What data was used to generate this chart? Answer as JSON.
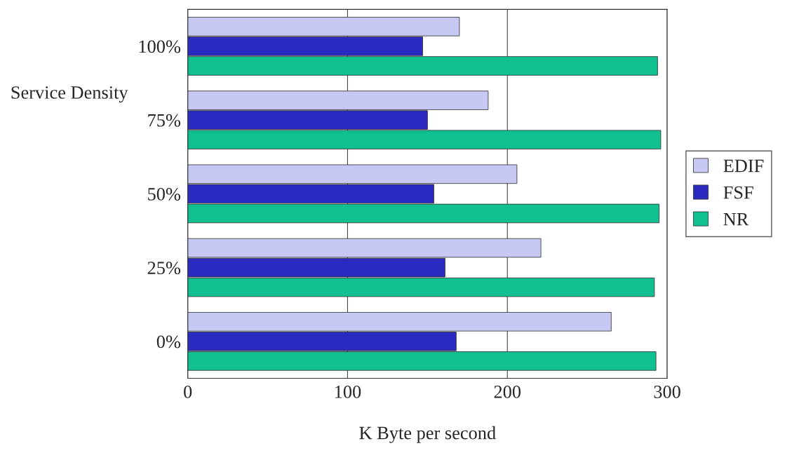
{
  "chart_data": {
    "type": "bar",
    "orientation": "horizontal",
    "xlabel": "K Byte per second",
    "ylabel": "Service Density",
    "categories": [
      "100%",
      "75%",
      "50%",
      "25%",
      "0%"
    ],
    "series": [
      {
        "name": "EDIF",
        "color": "#c8c8f5",
        "values": [
          170,
          188,
          206,
          221,
          265
        ]
      },
      {
        "name": "FSF",
        "color": "#2a2ac0",
        "values": [
          147,
          150,
          154,
          161,
          168
        ]
      },
      {
        "name": "NR",
        "color": "#10c090",
        "values": [
          294,
          296,
          295,
          292,
          293
        ]
      }
    ],
    "xlim": [
      0,
      300
    ],
    "xticks": [
      0,
      100,
      200,
      300
    ],
    "grid": "x",
    "legend": "right"
  }
}
